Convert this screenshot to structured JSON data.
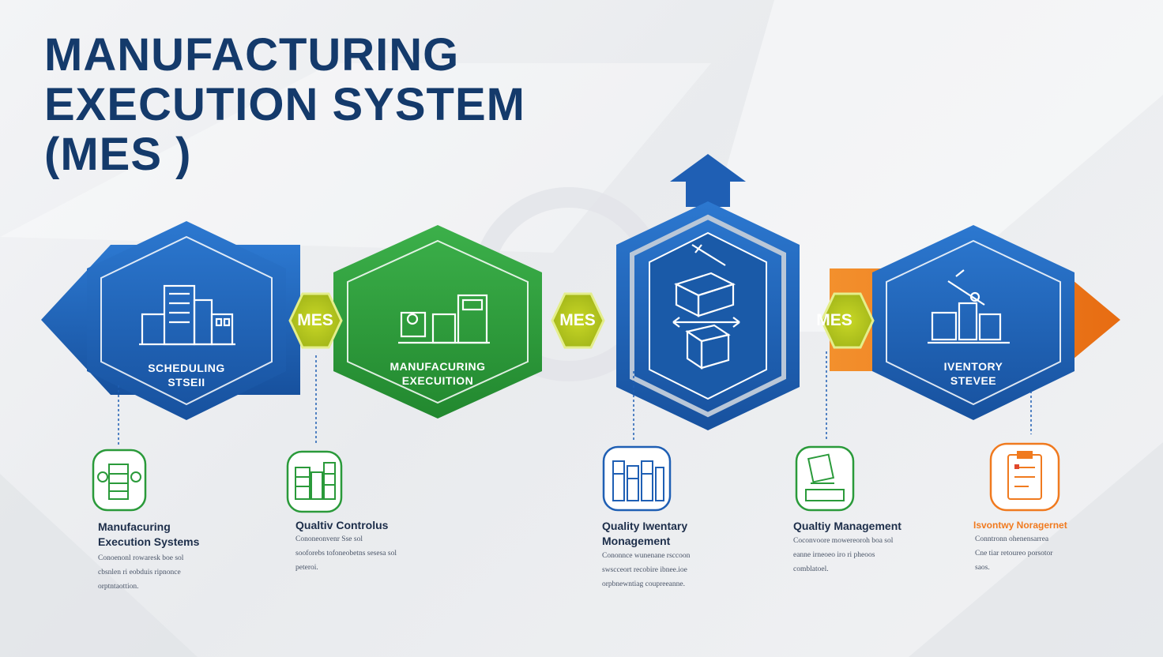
{
  "title": {
    "line1": "MANUFACTURING",
    "line2": "EXECUTION SYSTEM",
    "line3": "(MES )"
  },
  "colors": {
    "navy": "#143a6b",
    "blue": "#1f5fb4",
    "green": "#2a9a3a",
    "orange": "#f07a1f",
    "yellow_green": "#c8d62a"
  },
  "hexagons": [
    {
      "label_line1": "SCHEDULING",
      "label_line2": "STSEII",
      "color": "#1f5fb4",
      "icon": "factory-building-icon"
    },
    {
      "label_line1": "MANUFACURING",
      "label_line2": "EXECUITION",
      "color": "#2a9a3a",
      "icon": "production-machines-icon"
    },
    {
      "label_line1": "",
      "label_line2": "",
      "color": "#1f5fb4",
      "icon": "inventory-boxes-icon"
    },
    {
      "label_line1": "IVENTORY",
      "label_line2": "STEVEE",
      "color": "#1f5fb4",
      "icon": "inventory-crane-icon"
    }
  ],
  "connectors": [
    {
      "label": "MES"
    },
    {
      "label": "MES"
    },
    {
      "label": "MES"
    }
  ],
  "details": [
    {
      "title_line1": "Manufacuring",
      "title_line2": "Execution Systems",
      "text": [
        "Conoenonl rowaresk boe sol",
        "cbsnlen ri eobduis ripnonce",
        "orptntaottion."
      ],
      "color": "#2a9a3a",
      "icon": "material-tracking-icon"
    },
    {
      "title_line1": "Qualtiv Controlus",
      "title_line2": "",
      "text": [
        "Cononeonvenr      Sse sol",
        "sooforebs tofoneobetns  sesesa sol",
        "peteroi."
      ],
      "color": "#2a9a3a",
      "icon": "quality-control-panel-icon"
    },
    {
      "title_line1": "Quality Iwentary",
      "title_line2": "Monagement",
      "text": [
        "Cononnce wunenane rsccoon",
        "swscceort recobire ibnee.ioe",
        "orpbnewntiag coupreeanne."
      ],
      "color": "#1f5fb4",
      "icon": "inventory-shelves-icon"
    },
    {
      "title_line1": "Qualtiy Management",
      "title_line2": "",
      "text": [
        "Coconvoore mowereoroh boa sol",
        "eanne  irneoeo iro ri pheoos",
        "comblatoel."
      ],
      "color": "#2a9a3a",
      "icon": "quality-station-icon"
    },
    {
      "title_line1": "Isvontwy Noragernet",
      "title_line2": "",
      "text": [
        "Conntronn ohenensarrea",
        "Cne  tiar  retoureo  porsotor",
        "saos."
      ],
      "color": "#f07a1f",
      "icon": "inventory-clipboard-icon"
    }
  ]
}
